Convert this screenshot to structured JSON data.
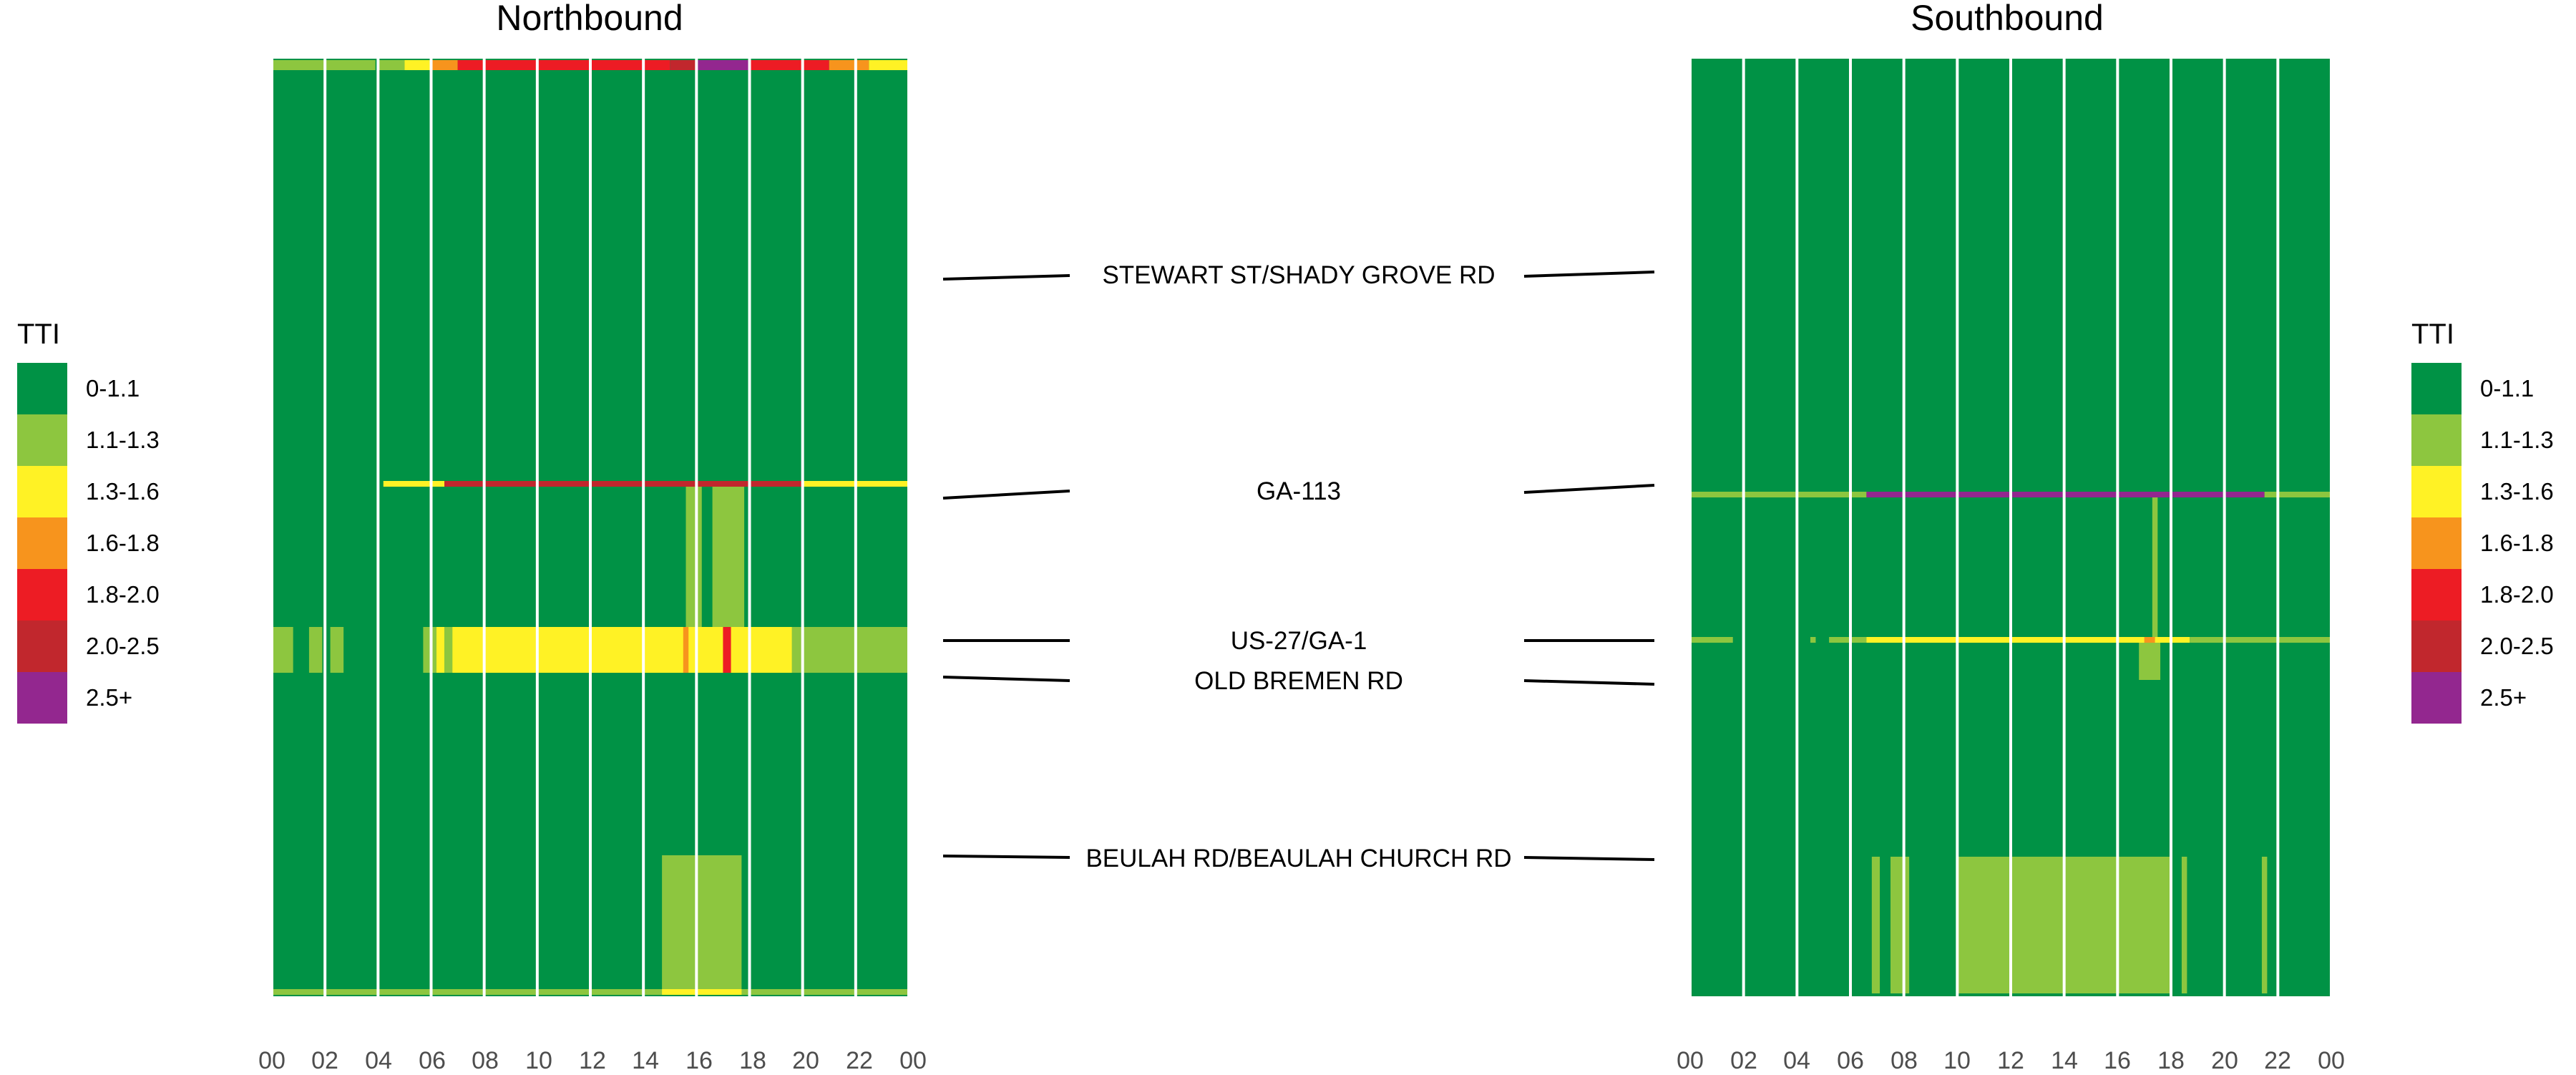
{
  "colors": {
    "0-1.1": "#009245",
    "1.1-1.3": "#8dc63f",
    "1.3-1.6": "#fff225",
    "1.6-1.8": "#f7941d",
    "1.8-2.0": "#ed1c24",
    "2.0-2.5": "#c1272d",
    "2.5+": "#93278f"
  },
  "chart_data": [
    {
      "type": "heatmap",
      "title": "Northbound",
      "x_ticks": [
        "00",
        "02",
        "04",
        "06",
        "08",
        "10",
        "12",
        "14",
        "16",
        "18",
        "20",
        "22",
        "00"
      ],
      "x_range_hours": [
        0,
        24
      ],
      "legend_title": "TTI",
      "categories": [
        "0-1.1",
        "1.1-1.3",
        "1.3-1.6",
        "1.6-1.8",
        "1.8-2.0",
        "2.0-2.5",
        "2.5+"
      ],
      "background": "0-1.1",
      "segments": [
        {
          "row": "top",
          "hours": [
            0,
            2
          ],
          "tti": "1.1-1.3"
        },
        {
          "row": "top",
          "hours": [
            2,
            3.9
          ],
          "tti": "1.1-1.3"
        },
        {
          "row": "top",
          "hours": [
            4,
            5
          ],
          "tti": "1.1-1.3"
        },
        {
          "row": "top",
          "hours": [
            5,
            6
          ],
          "tti": "1.3-1.6"
        },
        {
          "row": "top",
          "hours": [
            6,
            7
          ],
          "tti": "1.6-1.8"
        },
        {
          "row": "top",
          "hours": [
            7,
            15
          ],
          "tti": "1.8-2.0"
        },
        {
          "row": "top",
          "hours": [
            15,
            16
          ],
          "tti": "2.0-2.5"
        },
        {
          "row": "top",
          "hours": [
            16,
            18
          ],
          "tti": "2.5+"
        },
        {
          "row": "top",
          "hours": [
            18,
            21
          ],
          "tti": "1.8-2.0"
        },
        {
          "row": "top",
          "hours": [
            21,
            22.5
          ],
          "tti": "1.6-1.8"
        },
        {
          "row": "top",
          "hours": [
            22.5,
            24
          ],
          "tti": "1.3-1.6"
        },
        {
          "row": "GA-113",
          "hours": [
            4.2,
            6.5
          ],
          "tti": "1.3-1.6"
        },
        {
          "row": "GA-113",
          "hours": [
            6.5,
            20
          ],
          "tti": "2.0-2.5"
        },
        {
          "row": "GA-113",
          "hours": [
            20,
            24
          ],
          "tti": "1.3-1.6"
        },
        {
          "row": "GA-113 to US-27/GA-1",
          "hours": [
            15.6,
            16.2
          ],
          "tti": "1.1-1.3"
        },
        {
          "row": "GA-113 to US-27/GA-1",
          "hours": [
            16.6,
            17.8
          ],
          "tti": "1.1-1.3"
        },
        {
          "row": "US-27/GA-1 to OLD BREMEN RD",
          "hours": [
            0,
            0.8
          ],
          "tti": "1.1-1.3"
        },
        {
          "row": "US-27/GA-1 to OLD BREMEN RD",
          "hours": [
            1.4,
            1.9
          ],
          "tti": "1.1-1.3"
        },
        {
          "row": "US-27/GA-1 to OLD BREMEN RD",
          "hours": [
            2.2,
            2.7
          ],
          "tti": "1.1-1.3"
        },
        {
          "row": "US-27/GA-1 to OLD BREMEN RD",
          "hours": [
            5.7,
            6.2
          ],
          "tti": "1.1-1.3"
        },
        {
          "row": "US-27/GA-1 to OLD BREMEN RD",
          "hours": [
            6.2,
            6.5
          ],
          "tti": "1.3-1.6"
        },
        {
          "row": "US-27/GA-1 to OLD BREMEN RD",
          "hours": [
            6.5,
            6.8
          ],
          "tti": "1.1-1.3"
        },
        {
          "row": "US-27/GA-1 to OLD BREMEN RD",
          "hours": [
            6.8,
            19.6
          ],
          "tti": "1.3-1.6"
        },
        {
          "row": "US-27/GA-1 to OLD BREMEN RD",
          "hours": [
            15.5,
            15.7
          ],
          "tti": "1.6-1.8"
        },
        {
          "row": "US-27/GA-1 to OLD BREMEN RD",
          "hours": [
            17,
            17.3
          ],
          "tti": "1.8-2.0"
        },
        {
          "row": "US-27/GA-1 to OLD BREMEN RD",
          "hours": [
            19.6,
            24
          ],
          "tti": "1.1-1.3"
        },
        {
          "row": "BEULAH RD/BEAULAH CHURCH RD",
          "hours": [
            14.7,
            17.7
          ],
          "tti": "1.1-1.3"
        },
        {
          "row": "bottom",
          "hours": [
            0,
            24
          ],
          "tti": "1.1-1.3"
        },
        {
          "row": "bottom",
          "hours": [
            14.7,
            17.7
          ],
          "tti": "1.3-1.6"
        }
      ]
    },
    {
      "type": "heatmap",
      "title": "Southbound",
      "x_ticks": [
        "00",
        "02",
        "04",
        "06",
        "08",
        "10",
        "12",
        "14",
        "16",
        "18",
        "20",
        "22",
        "00"
      ],
      "x_range_hours": [
        0,
        24
      ],
      "legend_title": "TTI",
      "categories": [
        "0-1.1",
        "1.1-1.3",
        "1.3-1.6",
        "1.6-1.8",
        "1.8-2.0",
        "2.0-2.5",
        "2.5+"
      ],
      "background": "0-1.1",
      "segments": [
        {
          "row": "GA-113",
          "hours": [
            0,
            6.6
          ],
          "tti": "1.1-1.3"
        },
        {
          "row": "GA-113",
          "hours": [
            6.6,
            21.5
          ],
          "tti": "2.5+"
        },
        {
          "row": "GA-113",
          "hours": [
            21.5,
            24
          ],
          "tti": "1.1-1.3"
        },
        {
          "row": "GA-113 to US-27/GA-1",
          "hours": [
            17.3,
            17.5
          ],
          "tti": "1.1-1.3"
        },
        {
          "row": "US-27/GA-1",
          "hours": [
            0,
            1.6
          ],
          "tti": "1.1-1.3"
        },
        {
          "row": "US-27/GA-1",
          "hours": [
            4.5,
            4.7
          ],
          "tti": "1.1-1.3"
        },
        {
          "row": "US-27/GA-1",
          "hours": [
            5.2,
            6.6
          ],
          "tti": "1.1-1.3"
        },
        {
          "row": "US-27/GA-1",
          "hours": [
            6.6,
            18.7
          ],
          "tti": "1.3-1.6"
        },
        {
          "row": "US-27/GA-1",
          "hours": [
            17,
            17.4
          ],
          "tti": "1.6-1.8"
        },
        {
          "row": "US-27/GA-1",
          "hours": [
            18.7,
            24
          ],
          "tti": "1.1-1.3"
        },
        {
          "row": "US-27/GA-1 to OLD BREMEN RD",
          "hours": [
            16.8,
            17.6
          ],
          "tti": "1.1-1.3"
        },
        {
          "row": "BEULAH RD/BEAULAH CHURCH RD",
          "hours": [
            6.8,
            7.1
          ],
          "tti": "1.1-1.3"
        },
        {
          "row": "BEULAH RD/BEAULAH CHURCH RD",
          "hours": [
            7.5,
            8.2
          ],
          "tti": "1.1-1.3"
        },
        {
          "row": "BEULAH RD/BEAULAH CHURCH RD",
          "hours": [
            10,
            18
          ],
          "tti": "1.1-1.3"
        },
        {
          "row": "BEULAH RD/BEAULAH CHURCH RD",
          "hours": [
            18.4,
            18.6
          ],
          "tti": "1.1-1.3"
        },
        {
          "row": "BEULAH RD/BEAULAH CHURCH RD",
          "hours": [
            21.4,
            21.6
          ],
          "tti": "1.1-1.3"
        }
      ]
    }
  ],
  "roads": [
    "STEWART ST/SHADY GROVE RD",
    "GA-113",
    "US-27/GA-1",
    "OLD BREMEN RD",
    "BEULAH RD/BEAULAH CHURCH RD"
  ]
}
